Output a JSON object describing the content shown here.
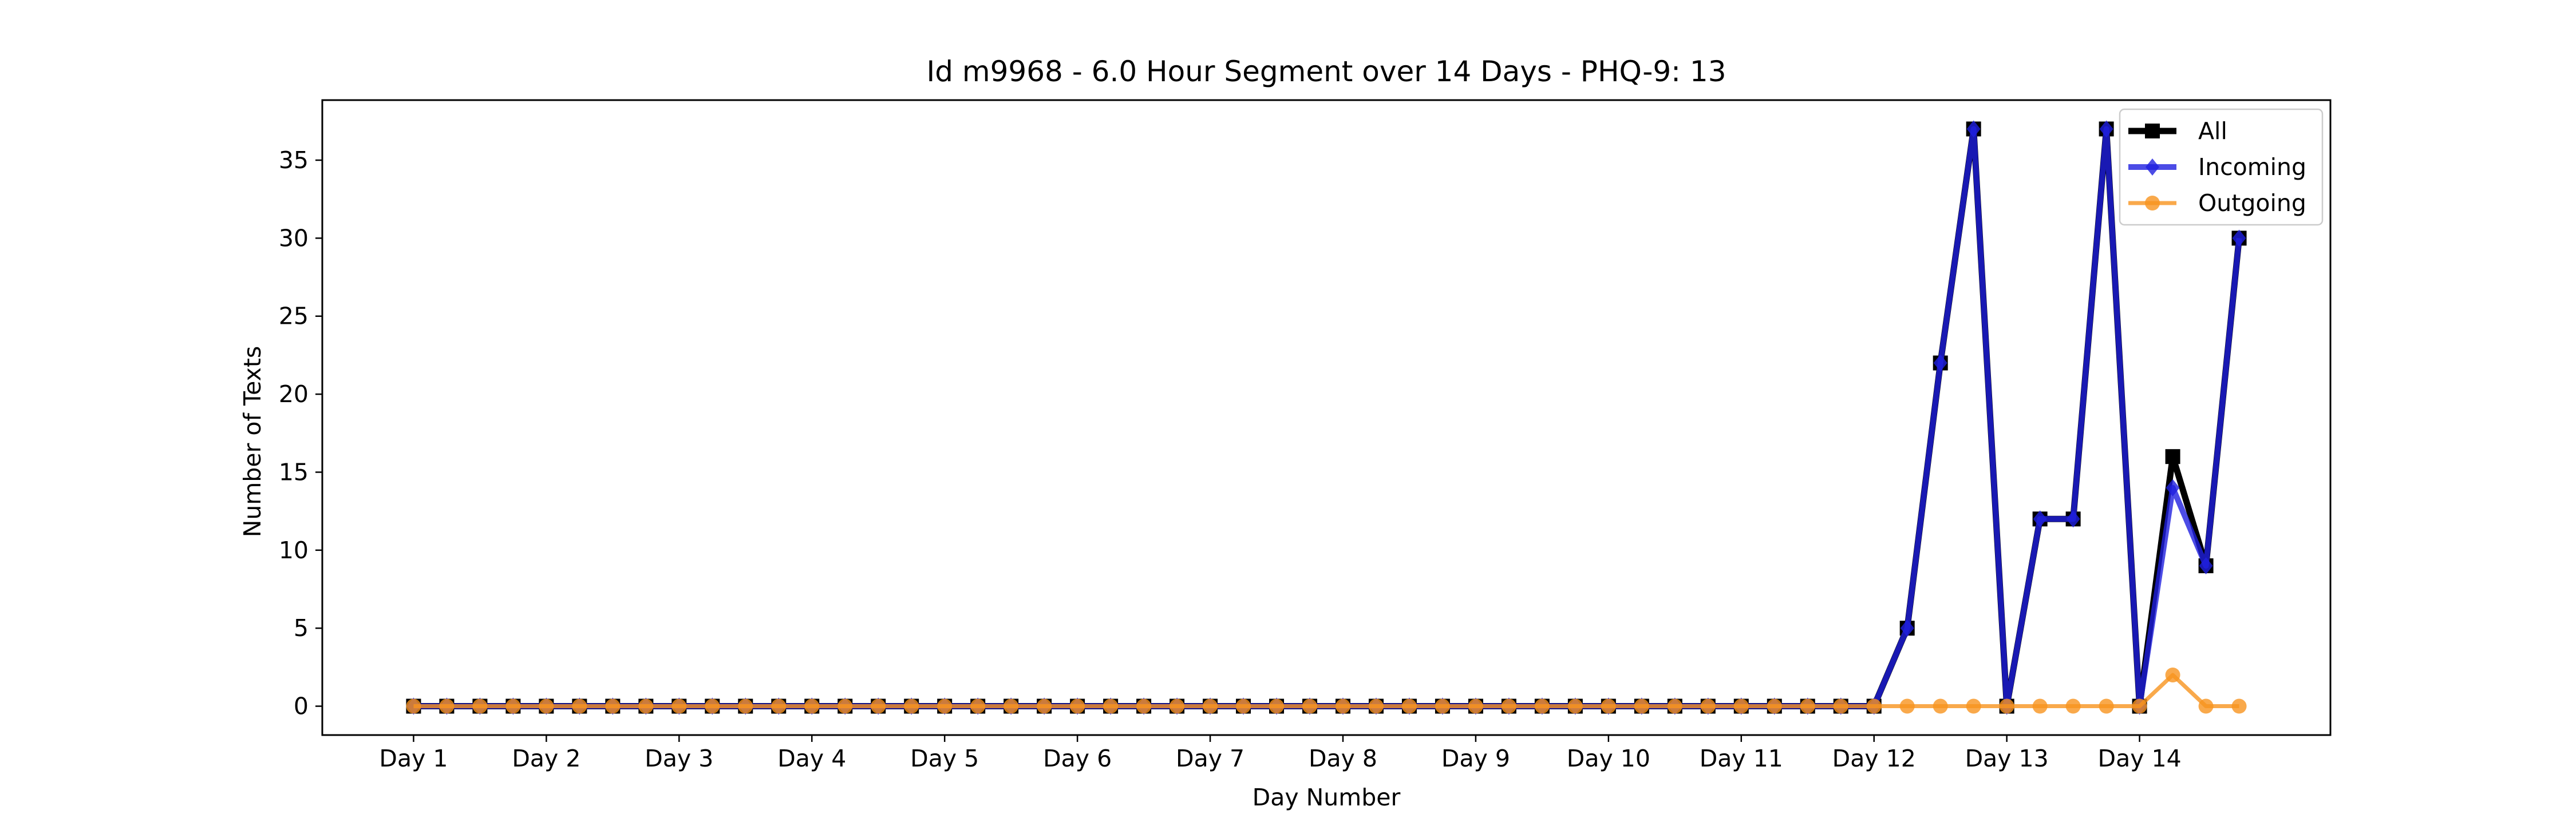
{
  "chart_data": {
    "type": "line",
    "title": "Id m9968 - 6.0 Hour Segment over 14 Days - PHQ-9: 13",
    "xlabel": "Day Number",
    "ylabel": "Number of Texts",
    "x_ticks": [
      {
        "x": 0,
        "label": "Day 1"
      },
      {
        "x": 4,
        "label": "Day 2"
      },
      {
        "x": 8,
        "label": "Day 3"
      },
      {
        "x": 12,
        "label": "Day 4"
      },
      {
        "x": 16,
        "label": "Day 5"
      },
      {
        "x": 20,
        "label": "Day 6"
      },
      {
        "x": 24,
        "label": "Day 7"
      },
      {
        "x": 28,
        "label": "Day 8"
      },
      {
        "x": 32,
        "label": "Day 9"
      },
      {
        "x": 36,
        "label": "Day 10"
      },
      {
        "x": 40,
        "label": "Day 11"
      },
      {
        "x": 44,
        "label": "Day 12"
      },
      {
        "x": 48,
        "label": "Day 13"
      },
      {
        "x": 52,
        "label": "Day 14"
      }
    ],
    "xlim": [
      -2.75,
      57.75
    ],
    "ylim": [
      -1.85,
      38.85
    ],
    "y_ticks": [
      0,
      5,
      10,
      15,
      20,
      25,
      30,
      35
    ],
    "grid": false,
    "legend_position": "top-right",
    "series": [
      {
        "name": "All",
        "color": "#000000",
        "marker": "square",
        "values": [
          0,
          0,
          0,
          0,
          0,
          0,
          0,
          0,
          0,
          0,
          0,
          0,
          0,
          0,
          0,
          0,
          0,
          0,
          0,
          0,
          0,
          0,
          0,
          0,
          0,
          0,
          0,
          0,
          0,
          0,
          0,
          0,
          0,
          0,
          0,
          0,
          0,
          0,
          0,
          0,
          0,
          0,
          0,
          0,
          0,
          5,
          22,
          37,
          0,
          12,
          12,
          37,
          0,
          16,
          9,
          30
        ]
      },
      {
        "name": "Incoming",
        "color": "#1f1fe0",
        "marker": "diamond",
        "values": [
          0,
          0,
          0,
          0,
          0,
          0,
          0,
          0,
          0,
          0,
          0,
          0,
          0,
          0,
          0,
          0,
          0,
          0,
          0,
          0,
          0,
          0,
          0,
          0,
          0,
          0,
          0,
          0,
          0,
          0,
          0,
          0,
          0,
          0,
          0,
          0,
          0,
          0,
          0,
          0,
          0,
          0,
          0,
          0,
          0,
          5,
          22,
          37,
          0,
          12,
          12,
          37,
          0,
          14,
          9,
          30
        ]
      },
      {
        "name": "Outgoing",
        "color": "#f7931e",
        "marker": "circle",
        "values": [
          0,
          0,
          0,
          0,
          0,
          0,
          0,
          0,
          0,
          0,
          0,
          0,
          0,
          0,
          0,
          0,
          0,
          0,
          0,
          0,
          0,
          0,
          0,
          0,
          0,
          0,
          0,
          0,
          0,
          0,
          0,
          0,
          0,
          0,
          0,
          0,
          0,
          0,
          0,
          0,
          0,
          0,
          0,
          0,
          0,
          0,
          0,
          0,
          0,
          0,
          0,
          0,
          0,
          2,
          0,
          0
        ]
      }
    ]
  }
}
